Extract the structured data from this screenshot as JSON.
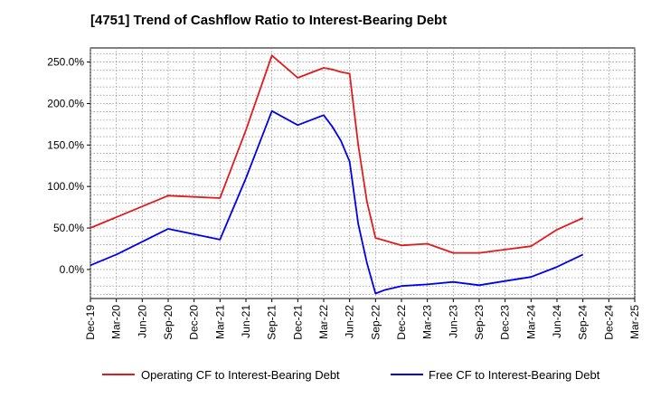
{
  "chart_data": {
    "type": "line",
    "title": "[4751]  Trend of Cashflow Ratio to Interest-Bearing Debt",
    "x_ticks": [
      "Dec-19",
      "Mar-20",
      "Jun-20",
      "Sep-20",
      "Dec-20",
      "Mar-21",
      "Jun-21",
      "Sep-21",
      "Dec-21",
      "Mar-22",
      "Jun-22",
      "Sep-22",
      "Dec-22",
      "Mar-23",
      "Jun-23",
      "Sep-23",
      "Dec-23",
      "Mar-24",
      "Jun-24",
      "Sep-24",
      "Dec-24",
      "Mar-25"
    ],
    "y_ticks": [
      "250.0%",
      "200.0%",
      "150.0%",
      "100.0%",
      "50.0%",
      "0.0%"
    ],
    "y_tick_values": [
      250,
      200,
      150,
      100,
      50,
      0
    ],
    "ylim": [
      -35,
      267
    ],
    "grid": true,
    "legend_position": "bottom",
    "series": [
      {
        "name": "Operating CF to Interest-Bearing Debt",
        "color": "#e31a1c",
        "x": [
          "Dec-19",
          "Sep-20",
          "Mar-21",
          "Jun-21",
          "Sep-21",
          "Dec-21",
          "Mar-22",
          "Apr-22",
          "May-22",
          "Jun-22",
          "Jul-22",
          "Aug-22",
          "Sep-22",
          "Dec-22",
          "Mar-23",
          "Jun-23",
          "Sep-23",
          "Dec-23",
          "Mar-24",
          "Jun-24",
          "Sep-24"
        ],
        "values": [
          50,
          89,
          86,
          168,
          258,
          231,
          243,
          241,
          238,
          236,
          150,
          82,
          38,
          29,
          31,
          20,
          20,
          24,
          28,
          48,
          62
        ]
      },
      {
        "name": "Free CF to Interest-Bearing Debt",
        "color": "#0000ee",
        "x": [
          "Dec-19",
          "Mar-20",
          "Sep-20",
          "Mar-21",
          "Jun-21",
          "Sep-21",
          "Dec-21",
          "Mar-22",
          "Apr-22",
          "May-22",
          "Jun-22",
          "Jul-22",
          "Aug-22",
          "Sep-22",
          "Oct-22",
          "Dec-22",
          "Mar-23",
          "Jun-23",
          "Sep-23",
          "Dec-23",
          "Mar-24",
          "Jun-24",
          "Sep-24"
        ],
        "values": [
          5,
          18,
          49,
          36,
          110,
          191,
          174,
          186,
          172,
          155,
          130,
          55,
          8,
          -29,
          -25,
          -20,
          -18,
          -15,
          -19,
          -14,
          -9,
          3,
          18
        ]
      }
    ]
  }
}
